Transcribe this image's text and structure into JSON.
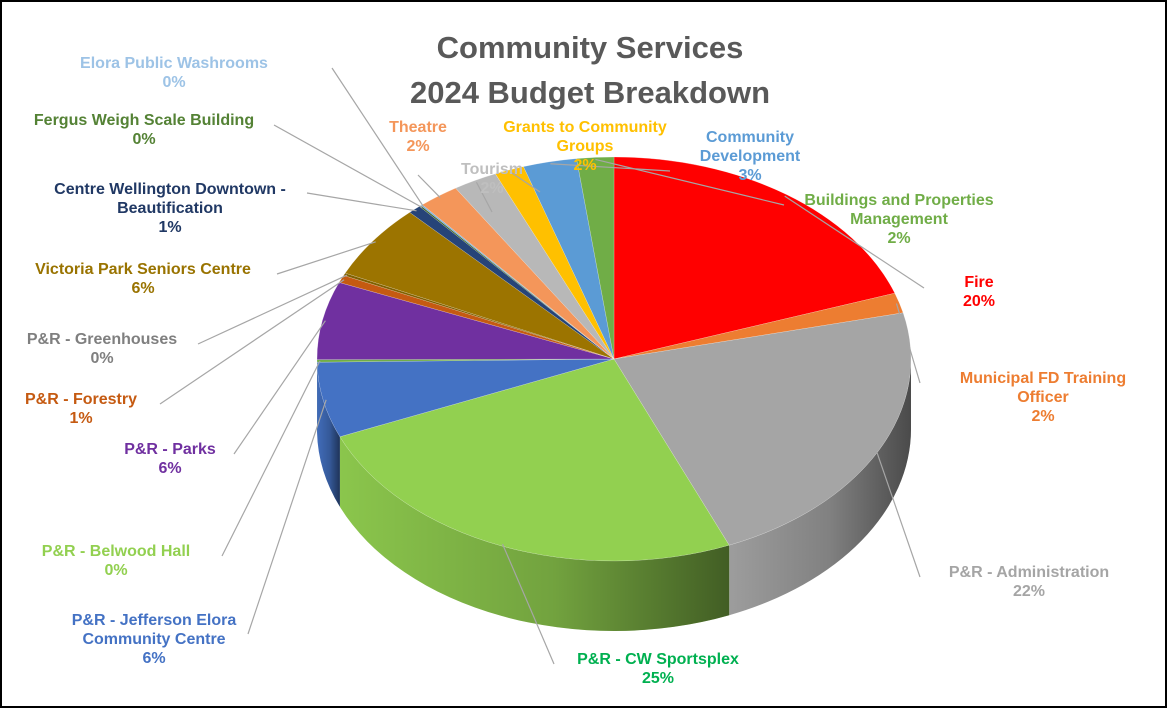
{
  "chart_data": {
    "type": "pie",
    "title_lines": [
      "Community Services",
      "2024 Budget Breakdown"
    ],
    "slices": [
      {
        "name": "Fire",
        "name_lines": [
          "Fire"
        ],
        "pct_label": "20%",
        "value": 19.6,
        "color": "#ff0000"
      },
      {
        "name": "Municipal FD Training Officer",
        "name_lines": [
          "Municipal FD Training",
          "Officer"
        ],
        "pct_label": "2%",
        "value": 1.6,
        "color": "#ed7d31"
      },
      {
        "name": "P&R - Administration",
        "name_lines": [
          "P&R - Administration"
        ],
        "pct_label": "22%",
        "value": 22.2,
        "color": "#a5a5a5"
      },
      {
        "name": "P&R - CW Sportsplex",
        "name_lines": [
          "P&R - CW Sportsplex"
        ],
        "pct_label": "25%",
        "value": 24.9,
        "color": "#92d050"
      },
      {
        "name": "P&R - Jefferson Elora Community Centre",
        "name_lines": [
          "P&R - Jefferson Elora",
          "Community Centre"
        ],
        "pct_label": "6%",
        "value": 6.0,
        "color": "#4472c4"
      },
      {
        "name": "P&R - Belwood Hall",
        "name_lines": [
          "P&R - Belwood Hall"
        ],
        "pct_label": "0%",
        "value": 0.2,
        "color": "#70ad47"
      },
      {
        "name": "P&R - Parks",
        "name_lines": [
          "P&R - Parks"
        ],
        "pct_label": "6%",
        "value": 6.2,
        "color": "#7030a0"
      },
      {
        "name": "P&R - Forestry",
        "name_lines": [
          "P&R - Forestry"
        ],
        "pct_label": "1%",
        "value": 0.6,
        "color": "#c55a11"
      },
      {
        "name": "P&R - Greenhouses",
        "name_lines": [
          "P&R - Greenhouses"
        ],
        "pct_label": "0%",
        "value": 0.2,
        "color": "#7f6000"
      },
      {
        "name": "Victoria Park Seniors Centre",
        "name_lines": [
          "Victoria Park Seniors Centre"
        ],
        "pct_label": "6%",
        "value": 5.9,
        "color": "#9c7400"
      },
      {
        "name": "Centre Wellington Downtown - Beautification",
        "name_lines": [
          "Centre Wellington Downtown -",
          "Beautification"
        ],
        "pct_label": "1%",
        "value": 0.7,
        "color": "#264478"
      },
      {
        "name": "Fergus Weigh Scale Building",
        "name_lines": [
          "Fergus Weigh Scale Building"
        ],
        "pct_label": "0%",
        "value": 0.1,
        "color": "#43682b"
      },
      {
        "name": "Elora Public Washrooms",
        "name_lines": [
          "Elora Public Washrooms"
        ],
        "pct_label": "0%",
        "value": 0.1,
        "color": "#7cafdd"
      },
      {
        "name": "Theatre",
        "name_lines": [
          "Theatre"
        ],
        "pct_label": "2%",
        "value": 2.2,
        "color": "#f4965a"
      },
      {
        "name": "Tourism",
        "name_lines": [
          "Tourism"
        ],
        "pct_label": "2%",
        "value": 2.4,
        "color": "#b8b8b8"
      },
      {
        "name": "Grants to Community Groups",
        "name_lines": [
          "Grants to Community",
          "Groups"
        ],
        "pct_label": "2%",
        "value": 1.6,
        "color": "#ffc000"
      },
      {
        "name": "Community Development",
        "name_lines": [
          "Community",
          "Development"
        ],
        "pct_label": "3%",
        "value": 2.9,
        "color": "#5b9bd5"
      },
      {
        "name": "Buildings and Properties Management",
        "name_lines": [
          "Buildings and Properties",
          "Management"
        ],
        "pct_label": "2%",
        "value": 2.0,
        "color": "#70ad47"
      }
    ],
    "label_colors": {
      "Fire": "#ff0000",
      "Municipal FD Training Officer": "#ed7d31",
      "P&R - Administration": "#a5a5a5",
      "P&R - CW Sportsplex": "#00b050",
      "P&R - Jefferson Elora Community Centre": "#4472c4",
      "P&R - Belwood Hall": "#92d050",
      "P&R - Parks": "#7030a0",
      "P&R - Forestry": "#c55a11",
      "P&R - Greenhouses": "#7f7f7f",
      "Victoria Park Seniors Centre": "#997300",
      "Centre Wellington Downtown - Beautification": "#203864",
      "Fergus Weigh Scale Building": "#548235",
      "Elora Public Washrooms": "#9dc3e6",
      "Theatre": "#f4965a",
      "Tourism": "#bfbfbf",
      "Grants to Community Groups": "#ffc000",
      "Community Development": "#5b9bd5",
      "Buildings and Properties Management": "#70ad47"
    },
    "start_angle": "12 o'clock",
    "direction": "clockwise",
    "style": "3D perspective pie",
    "legend": "none (callout labels with leader lines)"
  }
}
